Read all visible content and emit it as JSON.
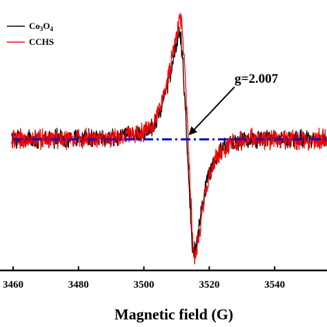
{
  "chart_data": {
    "type": "line",
    "title": "",
    "xlabel": "Magnetic field (G)",
    "ylabel": "",
    "xlim": [
      3456,
      3556
    ],
    "ylim": [
      -1.15,
      1.15
    ],
    "xticks": [
      "3460",
      "3480",
      "3500",
      "3520",
      "3540",
      "3560"
    ],
    "grid": false,
    "legend": {
      "placement": "top-left",
      "entries": [
        {
          "label_base": "Co",
          "sub1": "3",
          "mid": "O",
          "sub2": "4",
          "color": "#000000"
        },
        {
          "label": "CCHS",
          "color": "#ff0000"
        }
      ]
    },
    "baseline": {
      "y": 0,
      "color": "#0000cc",
      "style": "dash-dot"
    },
    "annotation": {
      "text": "g=2.007",
      "x": 3512,
      "y": 0
    },
    "series": [
      {
        "id": "co3o4",
        "color": "#000000",
        "noise": 0.065,
        "points": [
          [
            3460,
            0
          ],
          [
            3490,
            0.01
          ],
          [
            3500,
            0.05
          ],
          [
            3503,
            0.12
          ],
          [
            3505,
            0.24
          ],
          [
            3507,
            0.42
          ],
          [
            3509,
            0.68
          ],
          [
            3510.5,
            0.86
          ],
          [
            3511,
            0.88
          ],
          [
            3511.5,
            0.8
          ],
          [
            3512.5,
            0.35
          ],
          [
            3513.5,
            -0.2
          ],
          [
            3514.5,
            -0.75
          ],
          [
            3515,
            -0.96
          ],
          [
            3516,
            -0.9
          ],
          [
            3517.5,
            -0.62
          ],
          [
            3519,
            -0.38
          ],
          [
            3521,
            -0.2
          ],
          [
            3523,
            -0.1
          ],
          [
            3526,
            -0.04
          ],
          [
            3530,
            0
          ],
          [
            3556,
            0
          ]
        ]
      },
      {
        "id": "cchs",
        "color": "#ff0000",
        "noise": 0.07,
        "points": [
          [
            3460,
            0
          ],
          [
            3490,
            0.01
          ],
          [
            3500,
            0.06
          ],
          [
            3503,
            0.14
          ],
          [
            3505,
            0.28
          ],
          [
            3507,
            0.48
          ],
          [
            3509,
            0.74
          ],
          [
            3510.5,
            0.97
          ],
          [
            3511.3,
            1.02
          ],
          [
            3512,
            0.82
          ],
          [
            3513,
            0.3
          ],
          [
            3514,
            -0.3
          ],
          [
            3515,
            -0.9
          ],
          [
            3515.5,
            -1.02
          ],
          [
            3516.5,
            -0.88
          ],
          [
            3518,
            -0.58
          ],
          [
            3520,
            -0.3
          ],
          [
            3522,
            -0.15
          ],
          [
            3525,
            -0.06
          ],
          [
            3530,
            0
          ],
          [
            3556,
            0
          ]
        ]
      }
    ]
  }
}
